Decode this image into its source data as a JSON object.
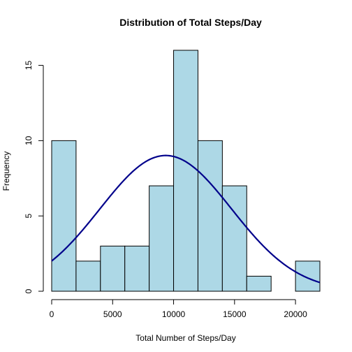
{
  "chart_data": {
    "type": "bar",
    "title": "Distribution of Total Steps/Day",
    "xlabel": "Total Number of Steps/Day",
    "ylabel": "Frequency",
    "bin_edges": [
      0,
      2000,
      4000,
      6000,
      8000,
      10000,
      12000,
      14000,
      16000,
      18000,
      20000,
      22000
    ],
    "values": [
      10,
      2,
      3,
      3,
      7,
      16,
      10,
      7,
      1,
      0,
      2
    ],
    "xlim": [
      0,
      22000
    ],
    "ylim": [
      0,
      16
    ],
    "x_ticks": [
      0,
      5000,
      10000,
      15000,
      20000
    ],
    "y_ticks": [
      0,
      5,
      10,
      15
    ],
    "grid": false,
    "bar_color": "#add8e6",
    "overlay_curve": {
      "type": "normal-density",
      "mean": 9354,
      "sd": 5400,
      "color": "#00008b"
    }
  }
}
